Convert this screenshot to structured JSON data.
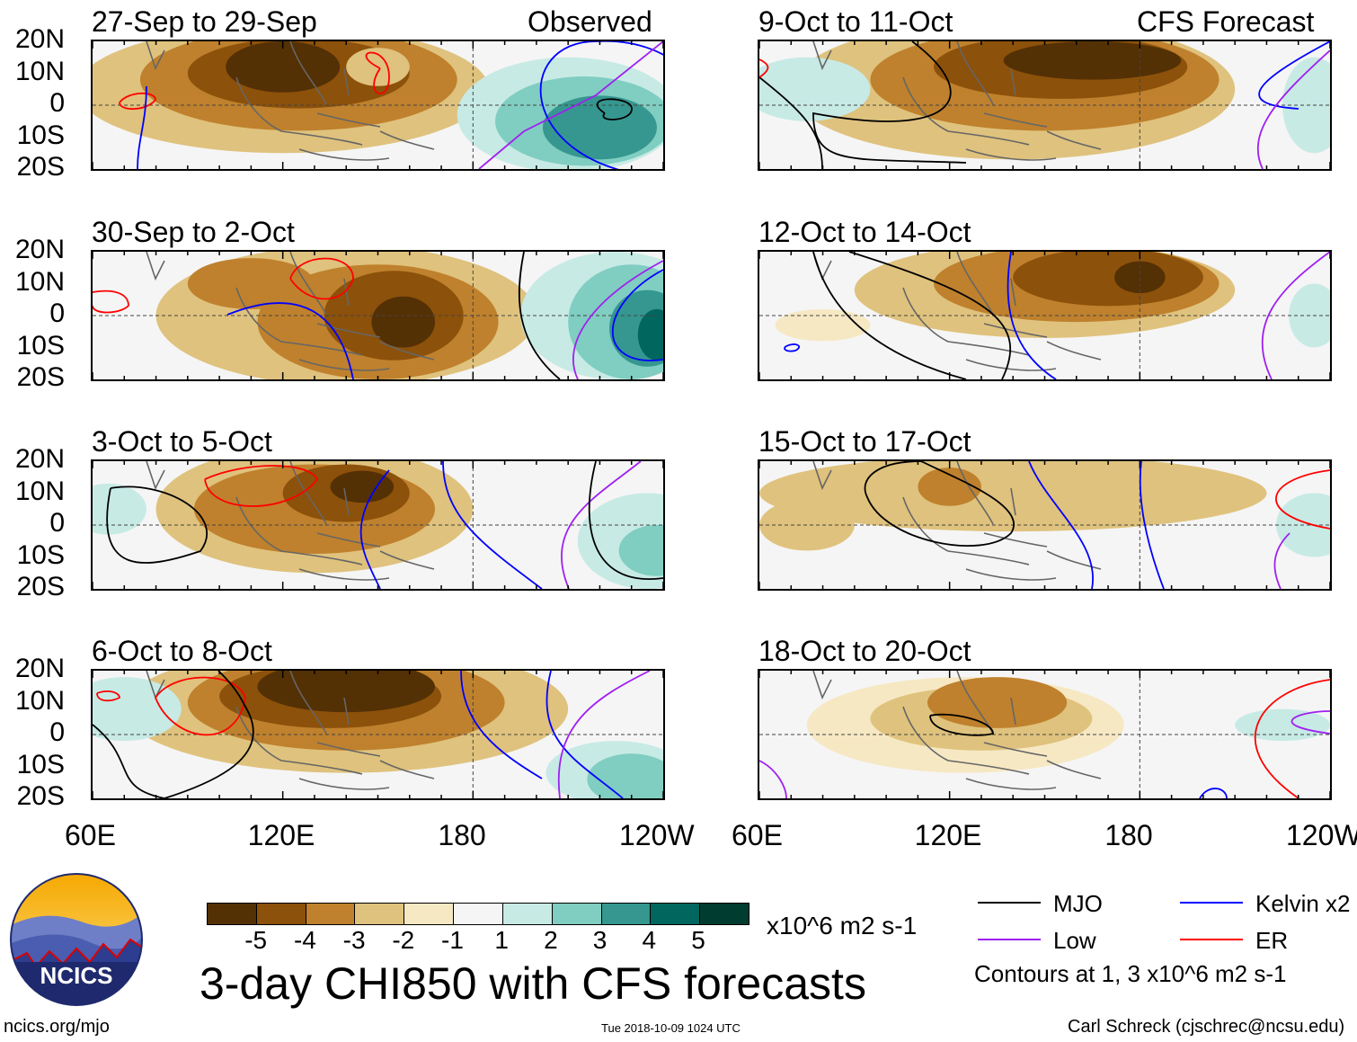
{
  "chart_data": {
    "type": "heatmap",
    "title": "3-day CHI850 with CFS forecasts",
    "units": "x10^6 m2 s-1",
    "xlim": [
      60,
      240
    ],
    "ylim": [
      -20,
      20
    ],
    "xticks": [
      "60E",
      "120E",
      "180",
      "120W"
    ],
    "yticks": [
      "20N",
      "10N",
      "0",
      "10S",
      "20S"
    ],
    "columns": [
      {
        "label": "Observed",
        "panels": [
          "27-Sep to 29-Sep",
          "30-Sep to 2-Oct",
          "3-Oct to 5-Oct",
          "6-Oct to 8-Oct"
        ]
      },
      {
        "label": "CFS Forecast",
        "panels": [
          "9-Oct to 11-Oct",
          "12-Oct to 14-Oct",
          "15-Oct to 17-Oct",
          "18-Oct to 20-Oct"
        ]
      }
    ],
    "colorbar": {
      "levels": [
        "-5",
        "-4",
        "-3",
        "-2",
        "-1",
        "1",
        "2",
        "3",
        "4",
        "5"
      ],
      "colors": [
        "#543005",
        "#8c510a",
        "#bf812d",
        "#dfc27d",
        "#f6e8c3",
        "#f5f5f5",
        "#c7eae5",
        "#80cdc1",
        "#35978f",
        "#01665e",
        "#003c30"
      ]
    },
    "contour_legend": [
      {
        "label": "MJO",
        "color": "#000000"
      },
      {
        "label": "Kelvin x2",
        "color": "#0000ff"
      },
      {
        "label": "Low",
        "color": "#a020f0"
      },
      {
        "label": "ER",
        "color": "#ff0000"
      }
    ],
    "contour_note": "Contours at 1, 3 x10^6 m2 s-1"
  },
  "footer": {
    "logo_text": "NCICS",
    "url": "ncics.org/mjo",
    "timestamp": "Tue 2018-10-09 1024 UTC",
    "credit": "Carl Schreck (cjschrec@ncsu.edu)"
  }
}
